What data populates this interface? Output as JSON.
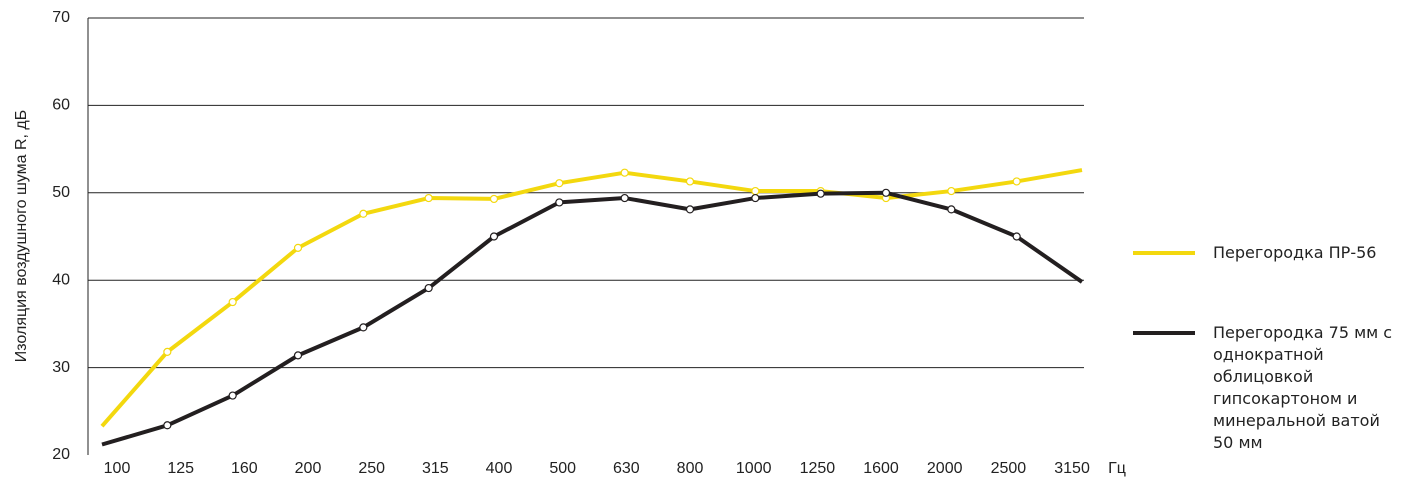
{
  "chart_data": {
    "type": "line",
    "y_label": "Изоляция воздушного шума R, дБ",
    "x_unit": "Гц",
    "categories": [
      "100",
      "125",
      "160",
      "200",
      "250",
      "315",
      "400",
      "500",
      "630",
      "800",
      "1000",
      "1250",
      "1600",
      "2000",
      "2500",
      "3150"
    ],
    "series": [
      {
        "name": "Перегородка ПР-56",
        "color": "#f3d80e",
        "values": [
          23.3,
          31.8,
          37.5,
          43.7,
          47.6,
          49.4,
          49.3,
          51.1,
          52.3,
          51.3,
          50.2,
          50.2,
          49.4,
          50.2,
          51.3,
          52.6
        ]
      },
      {
        "name": "Перегородка 75 мм с однократной облицовкой гипсокартоном и минеральной ватой 50 мм",
        "color": "#231f20",
        "values": [
          21.2,
          23.4,
          26.8,
          31.4,
          34.6,
          39.1,
          45.0,
          48.9,
          49.4,
          48.1,
          49.4,
          49.9,
          50.0,
          48.1,
          45.0,
          39.8
        ]
      }
    ],
    "ylim": [
      20,
      70
    ],
    "yticks": [
      20,
      30,
      40,
      50,
      60,
      70
    ],
    "grid": true
  }
}
